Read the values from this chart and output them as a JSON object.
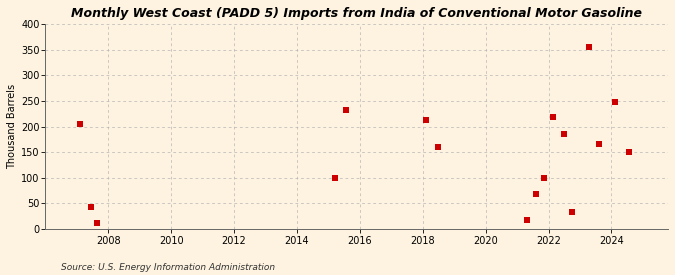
{
  "title": "Monthly West Coast (PADD 5) Imports from India of Conventional Motor Gasoline",
  "ylabel": "Thousand Barrels",
  "source": "Source: U.S. Energy Information Administration",
  "background_color": "#fdf3e0",
  "plot_background_color": "#fdf3e0",
  "marker_color": "#cc0000",
  "marker_size": 18,
  "xlim": [
    2006.0,
    2025.8
  ],
  "ylim": [
    0,
    400
  ],
  "yticks": [
    0,
    50,
    100,
    150,
    200,
    250,
    300,
    350,
    400
  ],
  "xticks": [
    2008,
    2010,
    2012,
    2014,
    2016,
    2018,
    2020,
    2022,
    2024
  ],
  "data_x": [
    2007.1,
    2007.45,
    2007.65,
    2015.2,
    2015.55,
    2018.1,
    2018.5,
    2021.3,
    2021.6,
    2021.85,
    2022.15,
    2022.5,
    2022.75,
    2023.3,
    2023.6,
    2024.1,
    2024.55
  ],
  "data_y": [
    205,
    43,
    11,
    100,
    233,
    213,
    161,
    18,
    68,
    100,
    219,
    186,
    34,
    354,
    165,
    248,
    151
  ],
  "title_fontsize": 9,
  "ylabel_fontsize": 7,
  "tick_fontsize": 7,
  "source_fontsize": 6.5
}
